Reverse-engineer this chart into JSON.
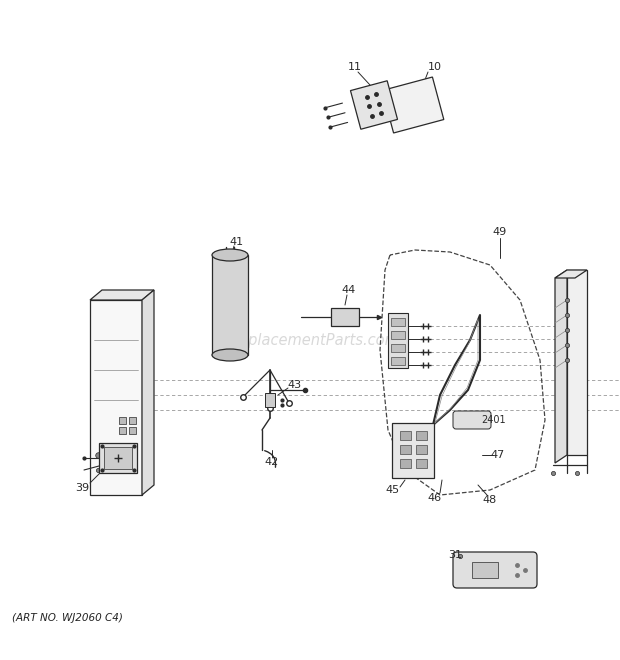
{
  "art_no": "(ART NO. WJ2060 C4)",
  "watermark": "eReplacementParts.com",
  "bg_color": "#ffffff",
  "line_color": "#2a2a2a",
  "light_gray": "#c8c8c8",
  "mid_gray": "#a0a0a0",
  "dark_gray": "#2a2a2a"
}
